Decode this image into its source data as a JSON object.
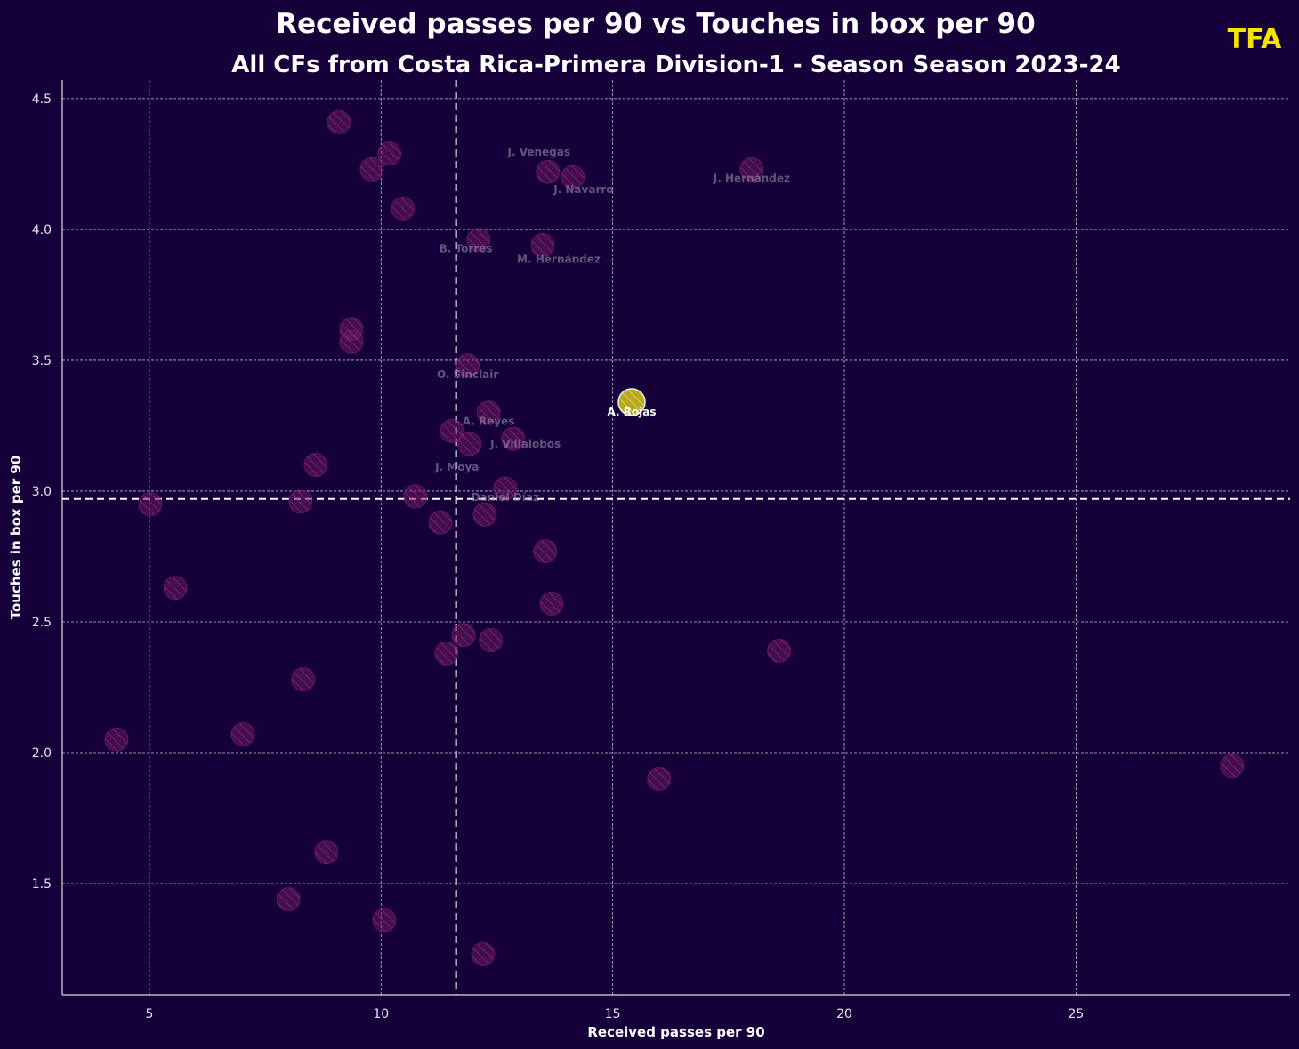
{
  "chart_data": {
    "type": "scatter",
    "title": "Received passes per 90 vs Touches in box per 90",
    "subtitle": "All CFs from Costa Rica-Primera Division-1 - Season Season 2023-24",
    "xlabel": "Received passes per 90",
    "ylabel": "Touches in box per 90",
    "xlim": [
      3.12,
      29.62
    ],
    "ylim": [
      1.075,
      4.571
    ],
    "xticks": [
      5,
      10,
      15,
      20,
      25
    ],
    "yticks": [
      1.5,
      2.0,
      2.5,
      3.0,
      3.5,
      4.0,
      4.5
    ],
    "grid": true,
    "reference_lines": {
      "x_median": 11.62,
      "y_median": 2.97
    },
    "colors": {
      "background": "#15003a",
      "point": "#6e1a5e",
      "highlight": "#b8a81c",
      "logo": "#f5e400"
    },
    "logo_text": "TFA",
    "highlight_player": "A. Rojas",
    "points": [
      {
        "x": 9.09,
        "y": 4.41,
        "label": ""
      },
      {
        "x": 10.18,
        "y": 4.29,
        "label": ""
      },
      {
        "x": 9.8,
        "y": 4.23,
        "label": ""
      },
      {
        "x": 13.6,
        "y": 4.22,
        "label": "J. Venegas"
      },
      {
        "x": 14.14,
        "y": 4.2,
        "label": "J. Navarro"
      },
      {
        "x": 18.0,
        "y": 4.23,
        "label": "J. Hernández"
      },
      {
        "x": 10.47,
        "y": 4.08,
        "label": ""
      },
      {
        "x": 12.1,
        "y": 3.96,
        "label": "B. Torres"
      },
      {
        "x": 13.49,
        "y": 3.94,
        "label": "M. Hernández"
      },
      {
        "x": 9.36,
        "y": 3.62,
        "label": ""
      },
      {
        "x": 9.36,
        "y": 3.57,
        "label": ""
      },
      {
        "x": 11.87,
        "y": 3.48,
        "label": "O. Sinclair"
      },
      {
        "x": 15.41,
        "y": 3.34,
        "label": "A. Rojas"
      },
      {
        "x": 12.32,
        "y": 3.3,
        "label": "A. Reyes"
      },
      {
        "x": 11.53,
        "y": 3.23,
        "label": ""
      },
      {
        "x": 12.85,
        "y": 3.2,
        "label": "J. Villalobos"
      },
      {
        "x": 11.91,
        "y": 3.18,
        "label": "J. Moya"
      },
      {
        "x": 8.59,
        "y": 3.1,
        "label": ""
      },
      {
        "x": 12.68,
        "y": 3.01,
        "label": "Daniel Díaz"
      },
      {
        "x": 10.74,
        "y": 2.98,
        "label": ""
      },
      {
        "x": 5.02,
        "y": 2.95,
        "label": ""
      },
      {
        "x": 8.26,
        "y": 2.96,
        "label": ""
      },
      {
        "x": 11.28,
        "y": 2.88,
        "label": ""
      },
      {
        "x": 12.24,
        "y": 2.91,
        "label": ""
      },
      {
        "x": 13.54,
        "y": 2.77,
        "label": ""
      },
      {
        "x": 5.56,
        "y": 2.63,
        "label": ""
      },
      {
        "x": 13.68,
        "y": 2.57,
        "label": ""
      },
      {
        "x": 11.78,
        "y": 2.45,
        "label": ""
      },
      {
        "x": 12.37,
        "y": 2.43,
        "label": ""
      },
      {
        "x": 11.41,
        "y": 2.38,
        "label": ""
      },
      {
        "x": 18.59,
        "y": 2.39,
        "label": ""
      },
      {
        "x": 8.32,
        "y": 2.28,
        "label": ""
      },
      {
        "x": 4.29,
        "y": 2.05,
        "label": ""
      },
      {
        "x": 7.02,
        "y": 2.07,
        "label": ""
      },
      {
        "x": 16.0,
        "y": 1.9,
        "label": ""
      },
      {
        "x": 28.37,
        "y": 1.95,
        "label": ""
      },
      {
        "x": 8.82,
        "y": 1.62,
        "label": ""
      },
      {
        "x": 8.0,
        "y": 1.44,
        "label": ""
      },
      {
        "x": 10.07,
        "y": 1.36,
        "label": ""
      },
      {
        "x": 12.2,
        "y": 1.23,
        "label": ""
      }
    ]
  }
}
